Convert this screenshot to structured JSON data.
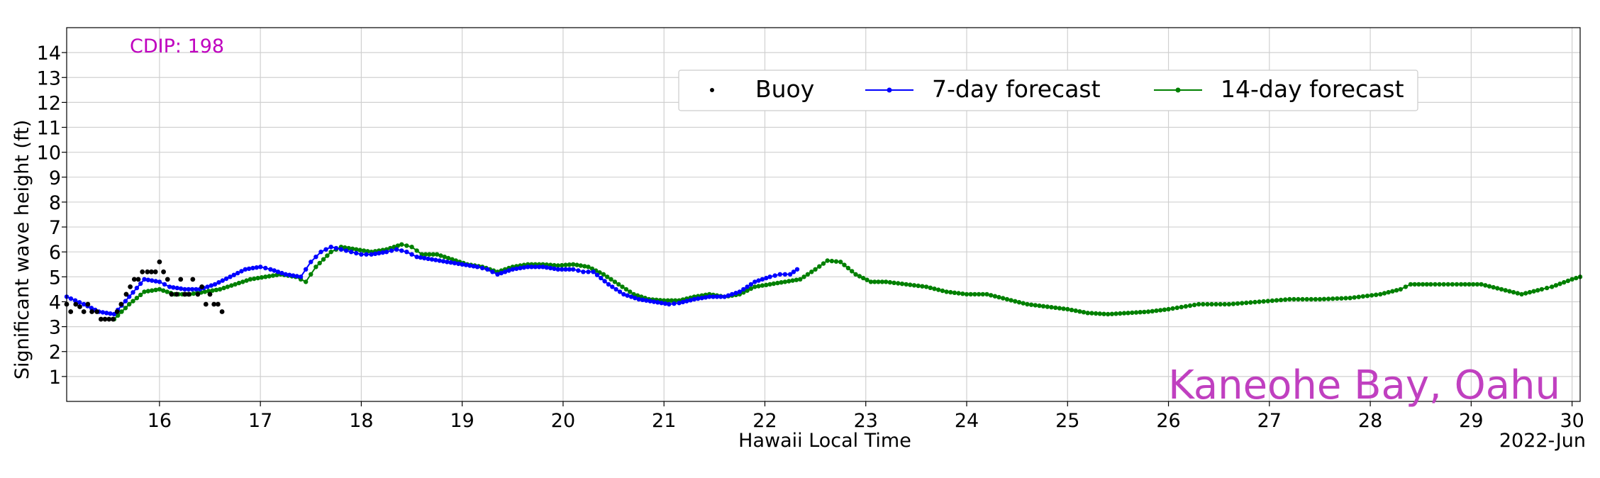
{
  "chart_data": {
    "type": "line",
    "title": "",
    "xlabel": "Hawaii Local Time",
    "ylabel": "Significant wave height (ft)",
    "date_label": "2022-Jun",
    "station_label": "CDIP: 198",
    "location_label": "Kaneohe Bay, Oahu",
    "xlim": [
      15.08,
      30.08
    ],
    "ylim": [
      0,
      15
    ],
    "x_ticks": [
      16,
      17,
      18,
      19,
      20,
      21,
      22,
      23,
      24,
      25,
      26,
      27,
      28,
      29,
      30
    ],
    "x_tick_labels": [
      "16",
      "17",
      "18",
      "19",
      "20",
      "21",
      "22",
      "23",
      "24",
      "25",
      "26",
      "27",
      "28",
      "29",
      "30"
    ],
    "y_ticks": [
      1,
      2,
      3,
      4,
      5,
      6,
      7,
      8,
      9,
      10,
      11,
      12,
      13,
      14
    ],
    "y_tick_labels": [
      "1",
      "2",
      "3",
      "4",
      "5",
      "6",
      "7",
      "8",
      "9",
      "10",
      "11",
      "12",
      "13",
      "14"
    ],
    "grid": true,
    "legend_position": "top-center",
    "colors": {
      "buoy": "#000000",
      "forecast7": "#0000ff",
      "forecast14": "#008000",
      "station": "#bf00bf",
      "location": "#c040c0"
    },
    "series": [
      {
        "name": "Buoy",
        "style": "points",
        "color": "#000000",
        "x": [
          15.08,
          15.12,
          15.17,
          15.21,
          15.25,
          15.29,
          15.33,
          15.38,
          15.42,
          15.46,
          15.5,
          15.54,
          15.58,
          15.62,
          15.67,
          15.71,
          15.75,
          15.79,
          15.83,
          15.88,
          15.92,
          15.96,
          16.0,
          16.04,
          16.08,
          16.12,
          16.17,
          16.21,
          16.25,
          16.29,
          16.33,
          16.38,
          16.42,
          16.46,
          16.5,
          16.54,
          16.58,
          16.62
        ],
        "y": [
          3.9,
          3.6,
          3.9,
          3.8,
          3.6,
          3.9,
          3.6,
          3.6,
          3.3,
          3.3,
          3.3,
          3.3,
          3.6,
          3.9,
          4.3,
          4.6,
          4.9,
          4.9,
          5.2,
          5.2,
          5.2,
          5.2,
          5.6,
          5.2,
          4.9,
          4.3,
          4.3,
          4.9,
          4.3,
          4.3,
          4.9,
          4.3,
          4.6,
          3.9,
          4.3,
          3.9,
          3.9,
          3.6
        ]
      },
      {
        "name": "7-day forecast",
        "style": "line-markers",
        "color": "#0000ff",
        "x": [
          15.08,
          15.25,
          15.4,
          15.55,
          15.7,
          15.85,
          16.0,
          16.1,
          16.25,
          16.4,
          16.55,
          16.7,
          16.85,
          17.0,
          17.1,
          17.25,
          17.4,
          17.5,
          17.6,
          17.7,
          17.8,
          17.9,
          18.0,
          18.1,
          18.25,
          18.35,
          18.45,
          18.55,
          18.7,
          18.85,
          19.0,
          19.15,
          19.25,
          19.35,
          19.5,
          19.65,
          19.8,
          19.95,
          20.1,
          20.2,
          20.3,
          20.45,
          20.6,
          20.75,
          20.9,
          21.05,
          21.15,
          21.3,
          21.45,
          21.6,
          21.75,
          21.9,
          22.05,
          22.15,
          22.25,
          22.32
        ],
        "y": [
          4.2,
          3.9,
          3.6,
          3.5,
          4.2,
          4.9,
          4.8,
          4.6,
          4.5,
          4.5,
          4.7,
          5.0,
          5.3,
          5.4,
          5.3,
          5.1,
          5.0,
          5.6,
          6.0,
          6.2,
          6.1,
          6.0,
          5.9,
          5.9,
          6.0,
          6.1,
          6.0,
          5.8,
          5.7,
          5.6,
          5.5,
          5.4,
          5.3,
          5.1,
          5.3,
          5.4,
          5.4,
          5.3,
          5.3,
          5.2,
          5.2,
          4.7,
          4.3,
          4.1,
          4.0,
          3.9,
          3.95,
          4.1,
          4.2,
          4.2,
          4.4,
          4.8,
          5.0,
          5.1,
          5.1,
          5.3
        ]
      },
      {
        "name": "14-day forecast",
        "style": "line-markers",
        "color": "#008000",
        "x": [
          15.55,
          15.7,
          15.85,
          16.0,
          16.15,
          16.3,
          16.45,
          16.6,
          16.75,
          16.9,
          17.05,
          17.2,
          17.35,
          17.45,
          17.55,
          17.7,
          17.8,
          17.95,
          18.1,
          18.25,
          18.4,
          18.5,
          18.6,
          18.75,
          18.9,
          19.05,
          19.2,
          19.35,
          19.5,
          19.65,
          19.8,
          19.95,
          20.1,
          20.25,
          20.4,
          20.55,
          20.7,
          20.85,
          21.0,
          21.15,
          21.3,
          21.45,
          21.6,
          21.75,
          21.9,
          22.05,
          22.2,
          22.35,
          22.5,
          22.62,
          22.75,
          22.9,
          23.05,
          23.2,
          23.4,
          23.6,
          23.8,
          24.0,
          24.2,
          24.4,
          24.6,
          24.8,
          25.0,
          25.2,
          25.4,
          25.6,
          25.8,
          26.0,
          26.3,
          26.6,
          26.9,
          27.2,
          27.5,
          27.8,
          28.1,
          28.3,
          28.4,
          28.6,
          28.9,
          29.1,
          29.3,
          29.5,
          29.7,
          29.8,
          30.0,
          30.08
        ],
        "y": [
          3.3,
          3.9,
          4.4,
          4.5,
          4.3,
          4.3,
          4.4,
          4.5,
          4.7,
          4.9,
          5.0,
          5.1,
          5.0,
          4.8,
          5.4,
          6.0,
          6.2,
          6.1,
          6.0,
          6.1,
          6.3,
          6.2,
          5.9,
          5.9,
          5.7,
          5.5,
          5.4,
          5.2,
          5.4,
          5.5,
          5.5,
          5.45,
          5.5,
          5.4,
          5.1,
          4.7,
          4.3,
          4.1,
          4.05,
          4.05,
          4.2,
          4.3,
          4.2,
          4.3,
          4.6,
          4.7,
          4.8,
          4.9,
          5.3,
          5.65,
          5.6,
          5.1,
          4.8,
          4.8,
          4.7,
          4.6,
          4.4,
          4.3,
          4.3,
          4.1,
          3.9,
          3.8,
          3.7,
          3.55,
          3.5,
          3.55,
          3.6,
          3.7,
          3.9,
          3.9,
          4.0,
          4.1,
          4.1,
          4.15,
          4.3,
          4.5,
          4.7,
          4.7,
          4.7,
          4.7,
          4.5,
          4.3,
          4.5,
          4.6,
          4.9,
          5.0
        ]
      }
    ]
  }
}
